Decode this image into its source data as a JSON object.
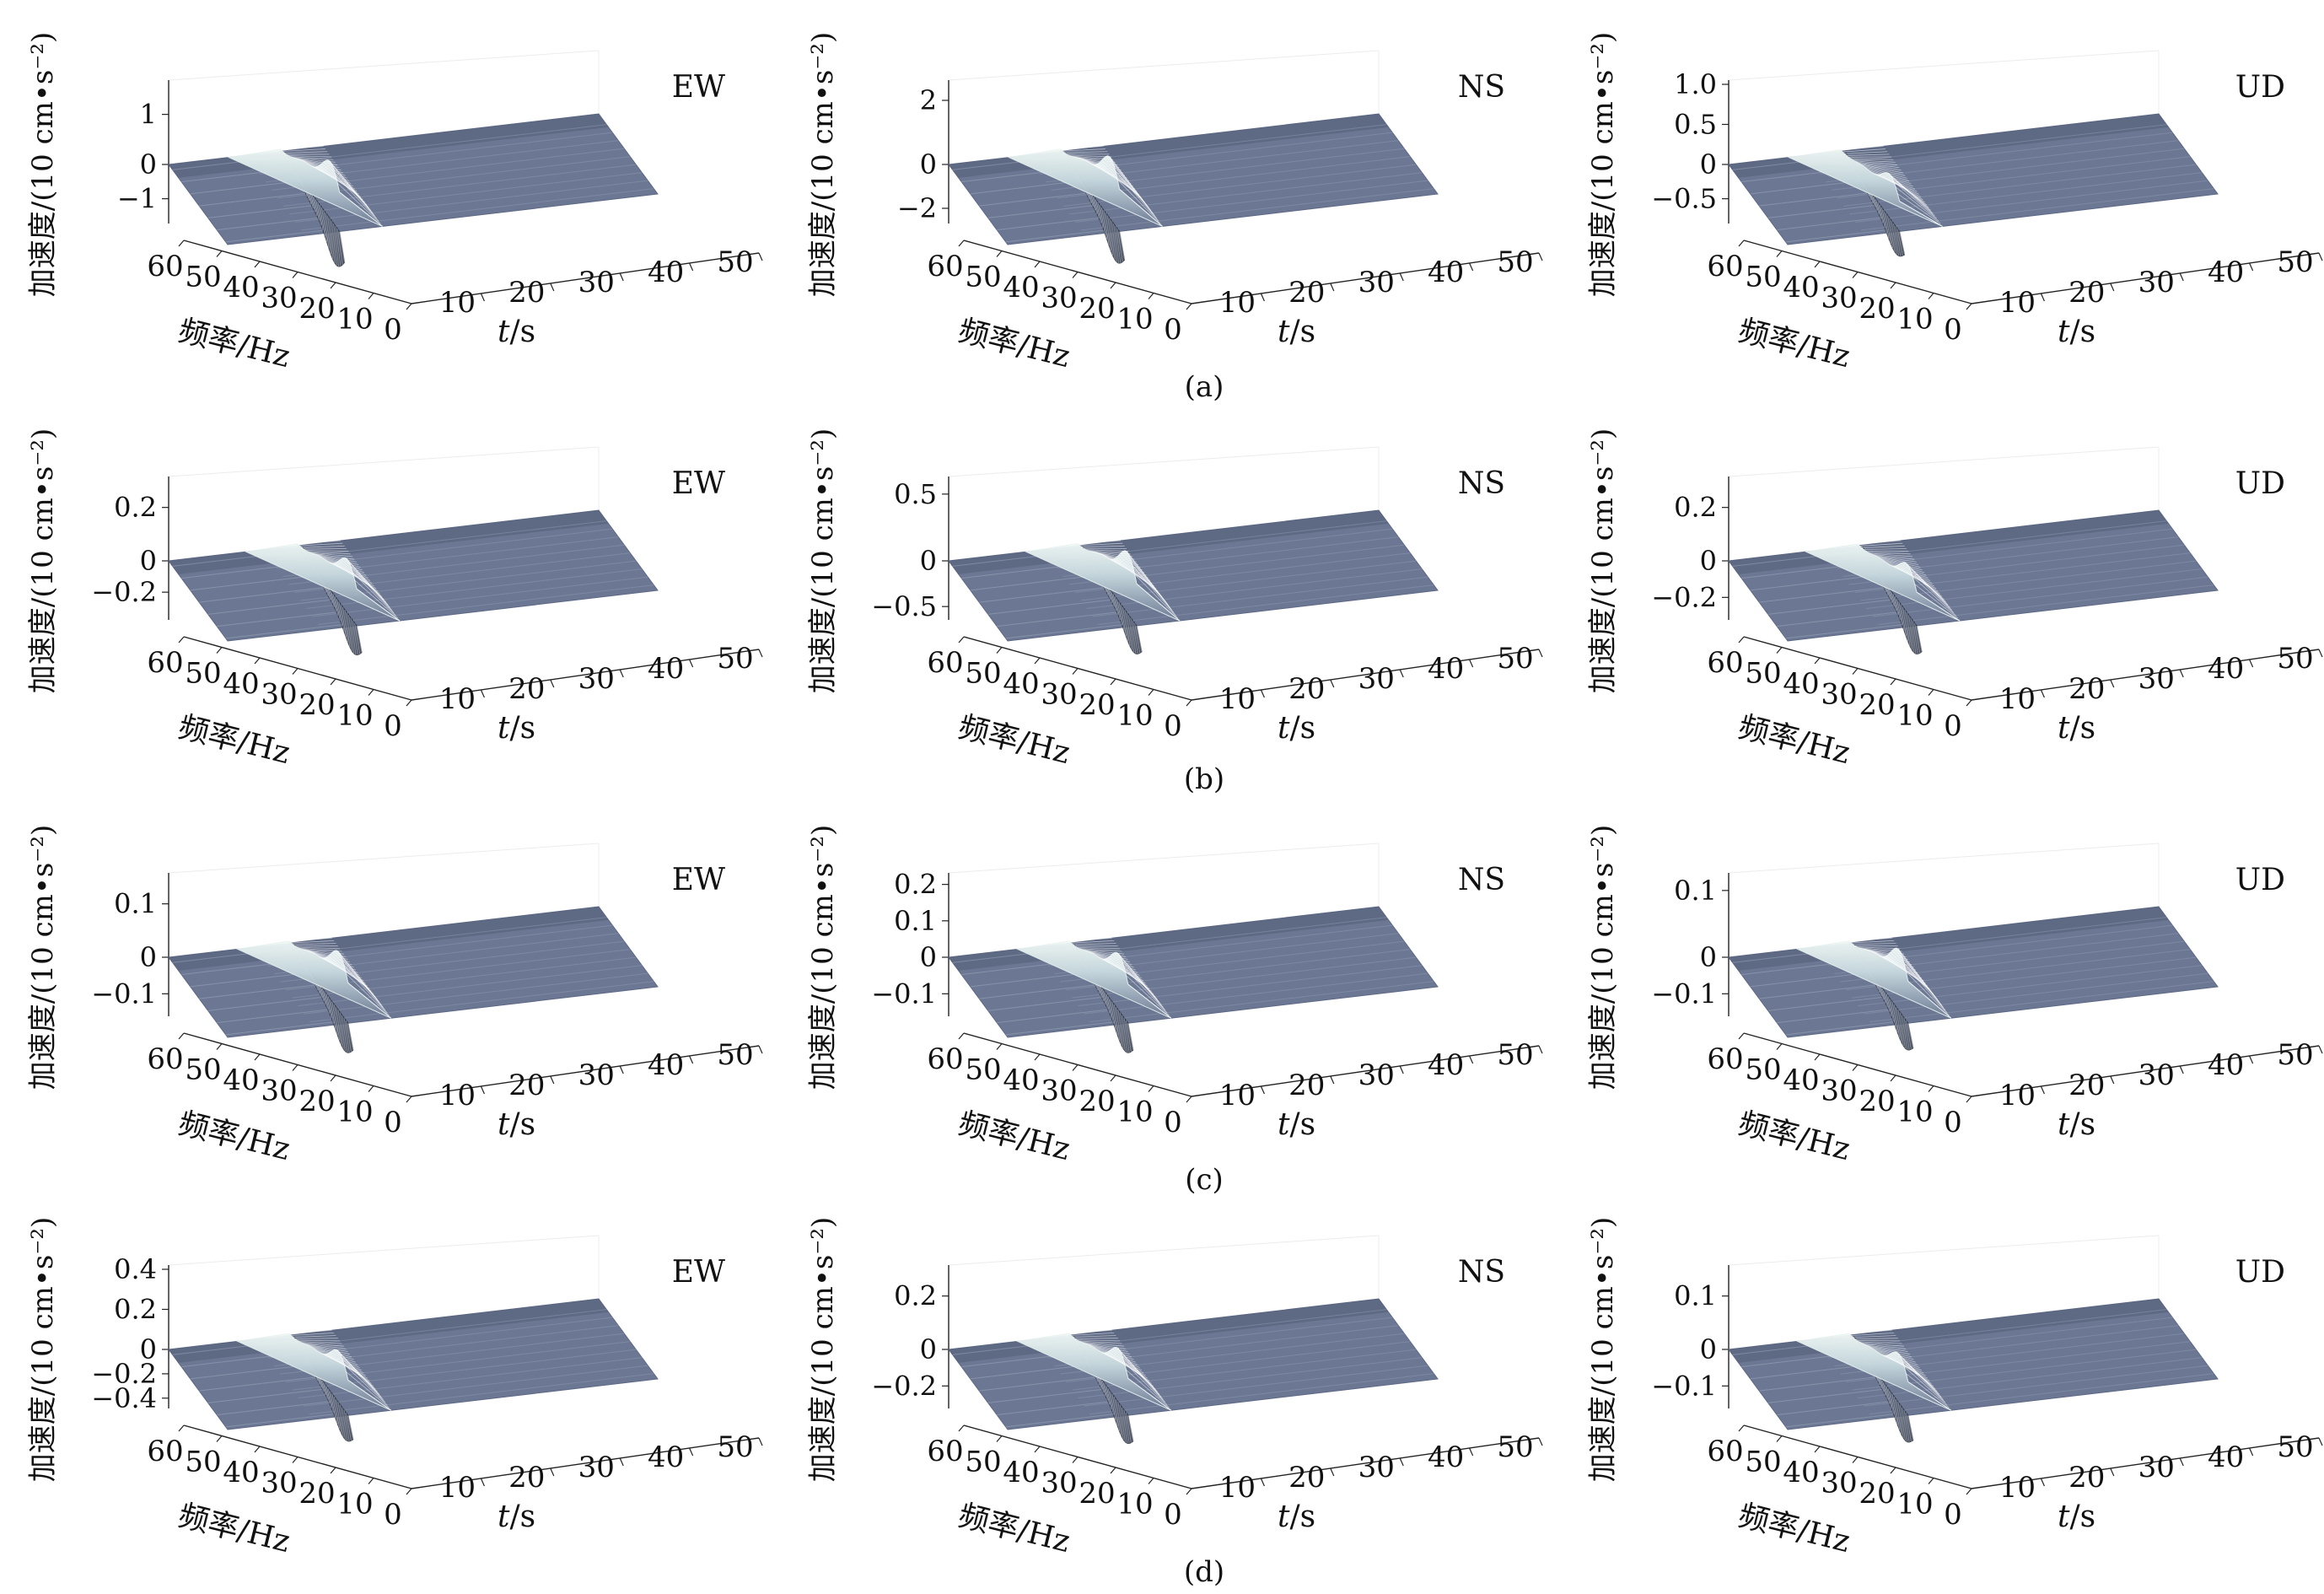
{
  "figure": {
    "axis_labels": {
      "z": "加速度/(10 cm•s⁻²)",
      "freq": "频率/Hz",
      "time_italic": "t",
      "time_unit": "/s"
    },
    "freq_ticks": [
      "60",
      "50",
      "40",
      "30",
      "20",
      "10",
      "0"
    ],
    "time_ticks": [
      "10",
      "20",
      "30",
      "40",
      "50"
    ],
    "rows": [
      {
        "label": "(a)"
      },
      {
        "label": "(b)"
      },
      {
        "label": "(c)"
      },
      {
        "label": "(d)"
      }
    ]
  },
  "chart_data": [
    {
      "type": "surface",
      "panel": "a",
      "component": "EW",
      "zticks": [
        "1",
        "0",
        "−1"
      ],
      "zlim": [
        -1.6,
        1.6
      ],
      "x_range": [
        0,
        50
      ],
      "y_range": [
        0,
        60
      ],
      "peak_t": 13,
      "peak": 1.25,
      "trough": -1.6
    },
    {
      "type": "surface",
      "panel": "a",
      "component": "NS",
      "zticks": [
        "2",
        "0",
        "−2"
      ],
      "zlim": [
        -2.5,
        2.5
      ],
      "x_range": [
        0,
        50
      ],
      "y_range": [
        0,
        60
      ],
      "peak_t": 13,
      "peak": 2.1,
      "trough": -2.3
    },
    {
      "type": "surface",
      "panel": "a",
      "component": "UD",
      "zticks": [
        "1.0",
        "0.5",
        "0",
        "−0.5"
      ],
      "zlim": [
        -0.8,
        1.0
      ],
      "x_range": [
        0,
        50
      ],
      "y_range": [
        0,
        60
      ],
      "peak_t": 13,
      "peak": 0.6,
      "trough": -0.6
    },
    {
      "type": "surface",
      "panel": "b",
      "component": "EW",
      "zticks": [
        "0.2",
        "0",
        "−0.2"
      ],
      "zlim": [
        -0.35,
        0.3
      ],
      "x_range": [
        0,
        50
      ],
      "y_range": [
        0,
        60
      ],
      "peak_t": 15,
      "peak": 0.22,
      "trough": -0.3
    },
    {
      "type": "surface",
      "panel": "b",
      "component": "NS",
      "zticks": [
        "0.5",
        "0",
        "−0.5"
      ],
      "zlim": [
        -0.6,
        0.6
      ],
      "x_range": [
        0,
        50
      ],
      "y_range": [
        0,
        60
      ],
      "peak_t": 15,
      "peak": 0.5,
      "trough": -0.5
    },
    {
      "type": "surface",
      "panel": "b",
      "component": "UD",
      "zticks": [
        "0.2",
        "0",
        "−0.2"
      ],
      "zlim": [
        -0.3,
        0.3
      ],
      "x_range": [
        0,
        50
      ],
      "y_range": [
        0,
        60
      ],
      "peak_t": 15,
      "peak": 0.2,
      "trough": -0.25
    },
    {
      "type": "surface",
      "panel": "c",
      "component": "EW",
      "zticks": [
        "0.1",
        "0",
        "−0.1"
      ],
      "zlim": [
        -0.15,
        0.15
      ],
      "x_range": [
        0,
        50
      ],
      "y_range": [
        0,
        60
      ],
      "peak_t": 14,
      "peak": 0.12,
      "trough": -0.13
    },
    {
      "type": "surface",
      "panel": "c",
      "component": "NS",
      "zticks": [
        "0.2",
        "0.1",
        "0",
        "−0.1"
      ],
      "zlim": [
        -0.15,
        0.22
      ],
      "x_range": [
        0,
        50
      ],
      "y_range": [
        0,
        60
      ],
      "peak_t": 14,
      "peak": 0.17,
      "trough": -0.13
    },
    {
      "type": "surface",
      "panel": "c",
      "component": "UD",
      "zticks": [
        "0.1",
        "0",
        "−0.1"
      ],
      "zlim": [
        -0.15,
        0.12
      ],
      "x_range": [
        0,
        50
      ],
      "y_range": [
        0,
        60
      ],
      "peak_t": 14,
      "peak": 0.1,
      "trough": -0.12
    },
    {
      "type": "surface",
      "panel": "d",
      "component": "EW",
      "zticks": [
        "0.4",
        "0.2",
        "0",
        "−0.2",
        "−0.4"
      ],
      "zlim": [
        -0.45,
        0.4
      ],
      "x_range": [
        0,
        50
      ],
      "y_range": [
        0,
        60
      ],
      "peak_t": 14,
      "peak": 0.28,
      "trough": -0.35
    },
    {
      "type": "surface",
      "panel": "d",
      "component": "NS",
      "zticks": [
        "0.2",
        "0",
        "−0.2"
      ],
      "zlim": [
        -0.3,
        0.3
      ],
      "x_range": [
        0,
        50
      ],
      "y_range": [
        0,
        60
      ],
      "peak_t": 14,
      "peak": 0.22,
      "trough": -0.25
    },
    {
      "type": "surface",
      "panel": "d",
      "component": "UD",
      "zticks": [
        "0.1",
        "0",
        "−0.1"
      ],
      "zlim": [
        -0.15,
        0.15
      ],
      "x_range": [
        0,
        50
      ],
      "y_range": [
        0,
        60
      ],
      "peak_t": 14,
      "peak": 0.1,
      "trough": -0.12
    }
  ]
}
